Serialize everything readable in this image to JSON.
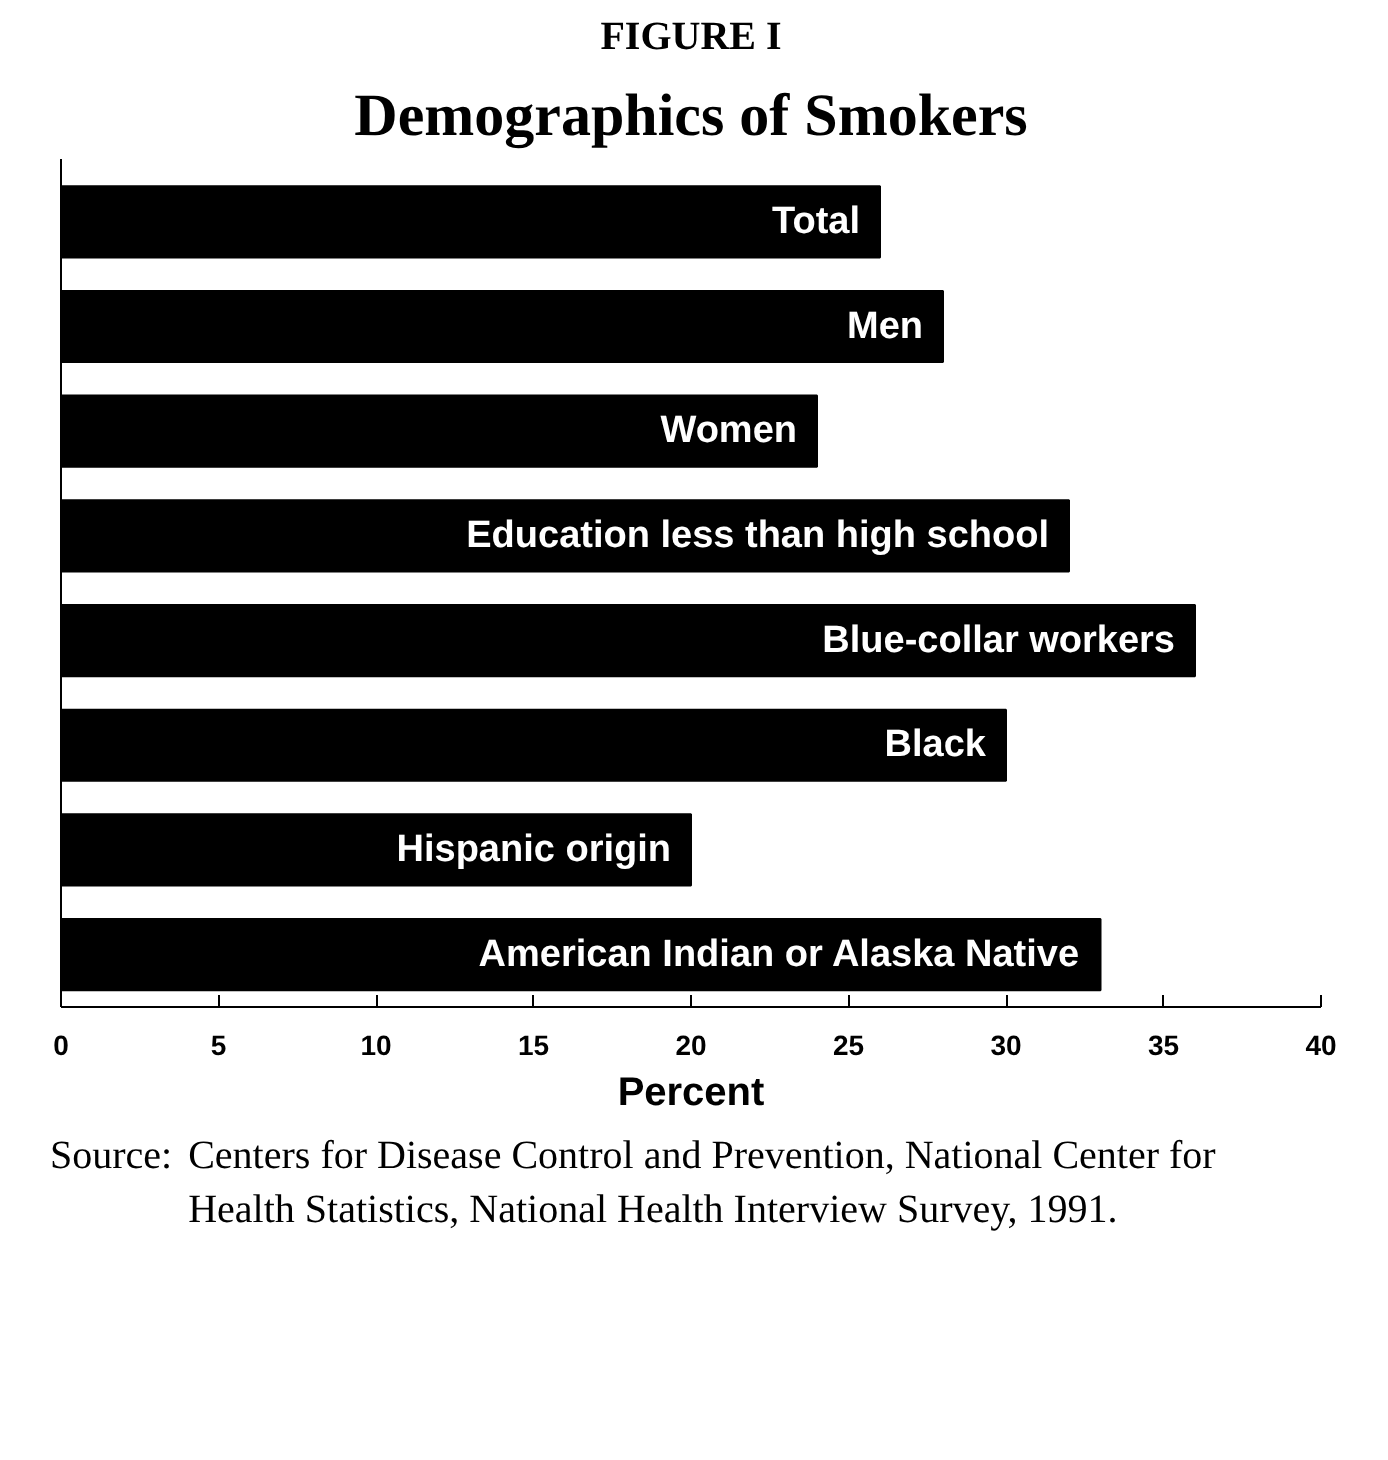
{
  "chart_data": {
    "type": "bar",
    "orientation": "horizontal",
    "title": "FIGURE I",
    "subtitle": "Demographics of Smokers",
    "categories": [
      "Total",
      "Men",
      "Women",
      "Education less than high school",
      "Blue-collar workers",
      "Black",
      "Hispanic origin",
      "American Indian or Alaska Native"
    ],
    "values": [
      26,
      28,
      24,
      32,
      36,
      30,
      20,
      33
    ],
    "color": "#000000",
    "xlabel": "Percent",
    "xlim": [
      0,
      40
    ],
    "xticks": [
      0,
      5,
      10,
      15,
      20,
      25,
      30,
      35,
      40
    ],
    "tick_labels": "x",
    "grid": false,
    "annotations": [
      "Source: Centers for Disease Control and Prevention, National Center for Health Statistics, National Health Interview Survey, 1991."
    ]
  }
}
